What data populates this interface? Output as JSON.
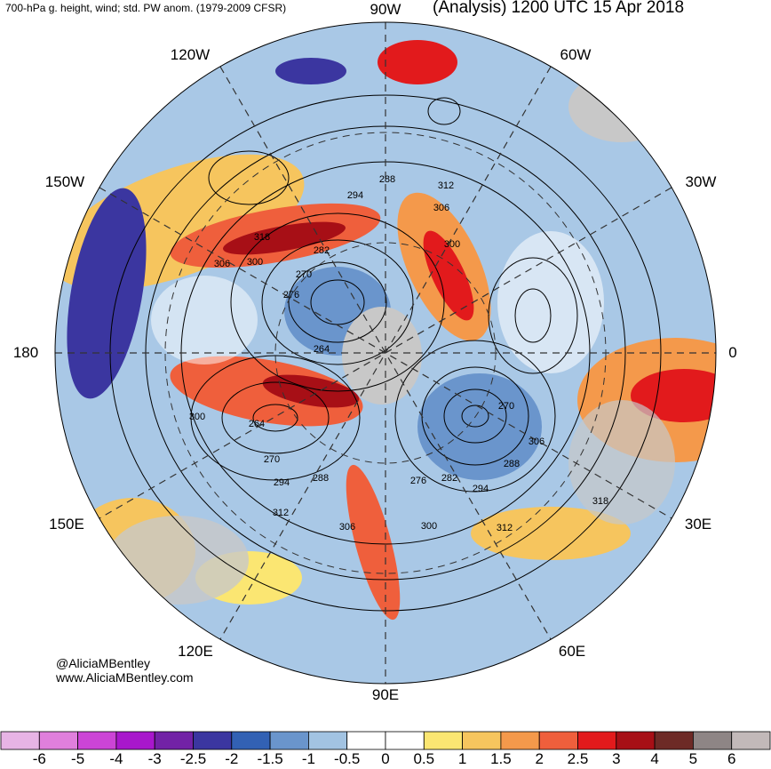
{
  "header": {
    "left": "700-hPa g. height, wind; std. PW anom. (1979-2009 CFSR)",
    "right": "(Analysis) 1200 UTC 15 Apr 2018"
  },
  "credit": {
    "handle": "@AliciaMBentley",
    "url": "www.AliciaMBentley.com"
  },
  "longitude_labels": [
    "90W",
    "60W",
    "30W",
    "0",
    "30E",
    "60E",
    "90E",
    "120E",
    "150E",
    "180",
    "150W",
    "120W"
  ],
  "contour_labels": [
    "288",
    "294",
    "312",
    "306",
    "300",
    "318",
    "306",
    "300",
    "270",
    "276",
    "282",
    "264",
    "300",
    "264",
    "270",
    "294",
    "288",
    "276",
    "282",
    "294",
    "312",
    "306",
    "300",
    "312",
    "270",
    "306",
    "288",
    "318"
  ],
  "colorbar": {
    "ticks": [
      "-6",
      "-5",
      "-4",
      "-3",
      "-2.5",
      "-2",
      "-1.5",
      "-1",
      "-0.5",
      "0",
      "0.5",
      "1",
      "1.5",
      "2",
      "2.5",
      "3",
      "4",
      "5",
      "6"
    ],
    "colors": [
      "#e7b4e5",
      "#e07fdc",
      "#cc44d6",
      "#a817cc",
      "#7222a6",
      "#3b36a0",
      "#3261b4",
      "#6a95cc",
      "#a2c3e2",
      "#ffffff",
      "#ffffff",
      "#fbe672",
      "#f6c55e",
      "#f4994b",
      "#ef5f3c",
      "#e21a1c",
      "#a70f16",
      "#6d2a26",
      "#8e8585",
      "#c2b9b9"
    ]
  }
}
